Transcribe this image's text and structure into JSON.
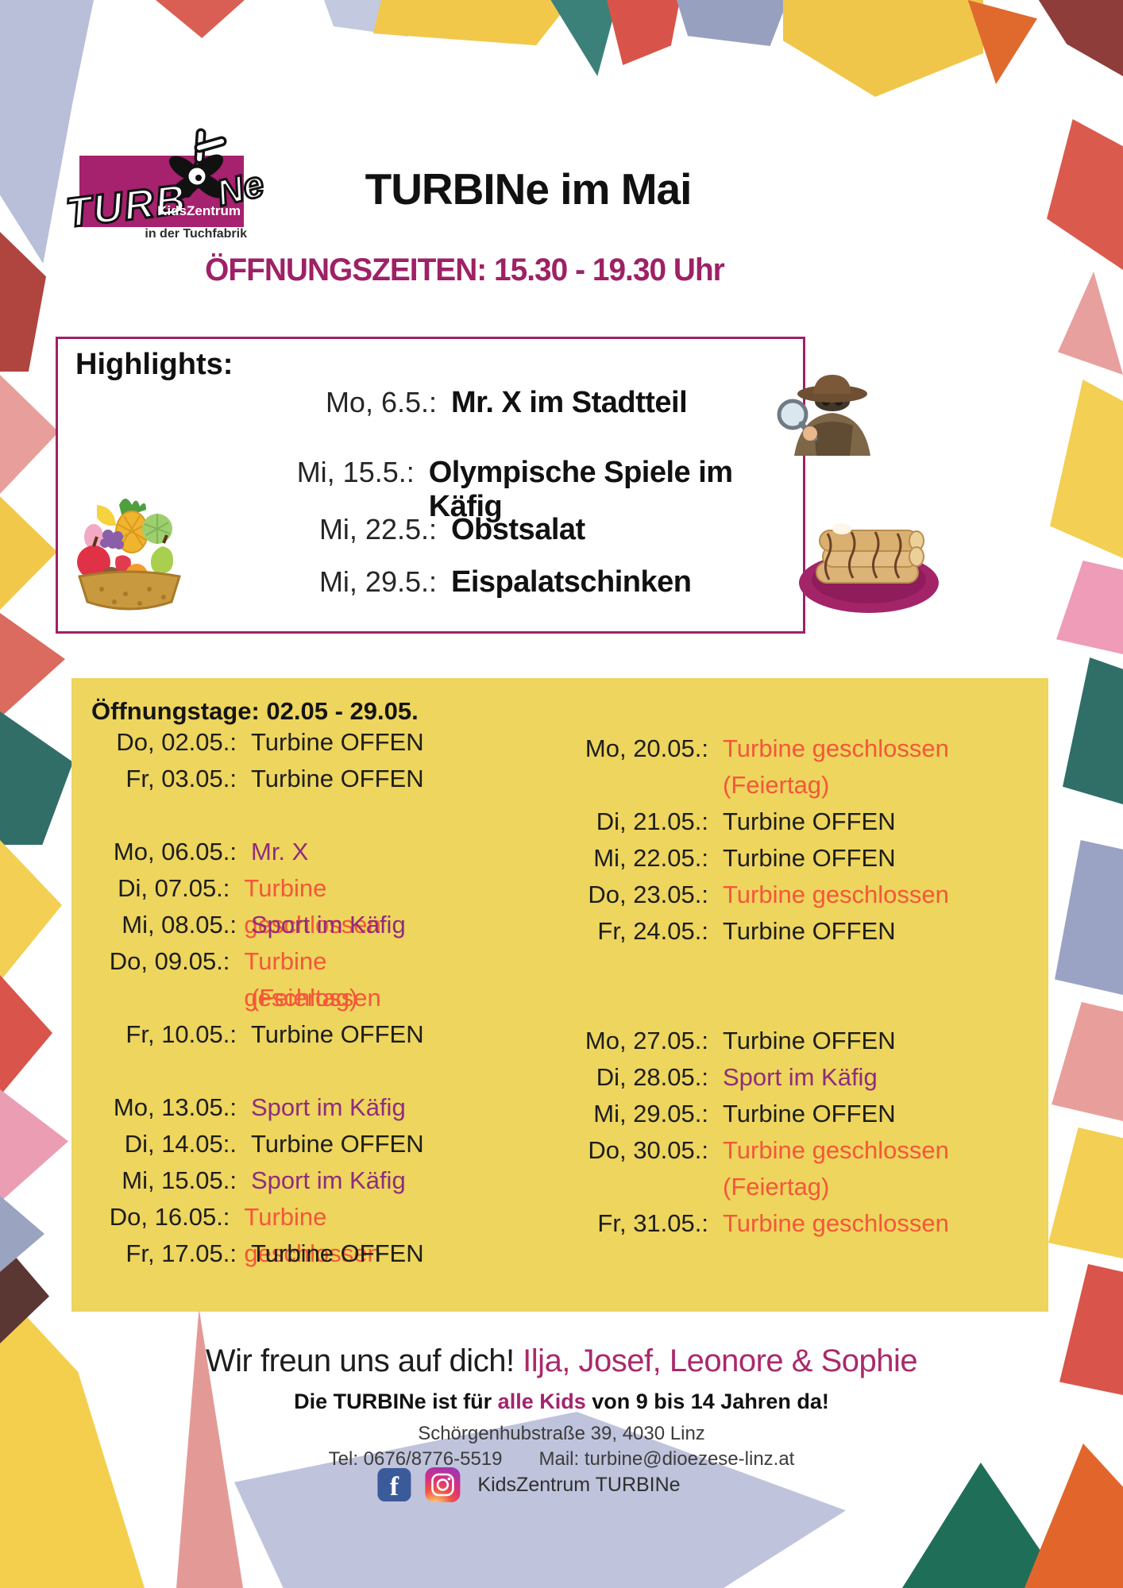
{
  "colors": {
    "accent_magenta": "#9e2166",
    "names_magenta": "#a92a6b",
    "panel_yellow": "#edd55e",
    "status_open": "#1d1d1b",
    "status_closed": "#f4573a",
    "status_event": "#8f2c7d",
    "logo_magenta": "#a6216e",
    "facebook_blue": "#3b5a9a"
  },
  "header": {
    "logo_turb": "TURB",
    "logo_ne": "Ne",
    "logo_sub1": "KidsZentrum",
    "logo_sub2": "in der Tuchfabrik",
    "title": "TURBINe im Mai",
    "opening_hours": "ÖFFNUNGSZEITEN: 15.30 - 19.30 Uhr"
  },
  "highlights": {
    "title": "Highlights:",
    "items": [
      {
        "date": "Mo, 6.5.:",
        "event": "Mr. X im Stadtteil"
      },
      {
        "date": "Mi, 15.5.:",
        "event": "Olympische Spiele im Käfig"
      },
      {
        "date": "Mi, 22.5.:",
        "event": "Obstsalat"
      },
      {
        "date": "Mi, 29.5.:",
        "event": "Eispalatschinken"
      }
    ]
  },
  "schedule": {
    "title": "Öffnungstage: 02.05 - 29.05.",
    "left": [
      {
        "date": "Do, 02.05.:",
        "status": "Turbine OFFEN",
        "type": "open"
      },
      {
        "date": "Fr, 03.05.:",
        "status": "Turbine OFFEN",
        "type": "open"
      },
      {
        "gap": true
      },
      {
        "date": "Mo, 06.05.:",
        "status": "Mr. X",
        "type": "event"
      },
      {
        "date": "Di, 07.05.:",
        "status": "Turbine geschlossen",
        "type": "closed"
      },
      {
        "date": "Mi, 08.05.:",
        "status": "Sport im Käfig",
        "type": "event"
      },
      {
        "date": "Do, 09.05.:",
        "status": "Turbine geschlossen",
        "note": "(Feiertag)",
        "type": "closed"
      },
      {
        "date": "Fr, 10.05.:",
        "status": "Turbine OFFEN",
        "type": "open"
      },
      {
        "gap": true
      },
      {
        "date": "Mo, 13.05.:",
        "status": "Sport im Käfig",
        "type": "event"
      },
      {
        "date": "Di, 14.05:.",
        "status": "Turbine OFFEN",
        "type": "open"
      },
      {
        "date": "Mi, 15.05.:",
        "status": "Sport im Käfig",
        "type": "event"
      },
      {
        "date": "Do, 16.05.:",
        "status": "Turbine geschlossen",
        "type": "closed"
      },
      {
        "date": "Fr, 17.05.:",
        "status": "Turbine OFFEN",
        "type": "open"
      }
    ],
    "right": [
      {
        "date": "Mo, 20.05.:",
        "status": "Turbine geschlossen",
        "note": "(Feiertag)",
        "type": "closed"
      },
      {
        "date": "Di, 21.05.:",
        "status": "Turbine OFFEN",
        "type": "open"
      },
      {
        "date": "Mi, 22.05.:",
        "status": "Turbine OFFEN",
        "type": "open"
      },
      {
        "date": "Do, 23.05.:",
        "status": "Turbine geschlossen",
        "type": "closed"
      },
      {
        "date": "Fr, 24.05.:",
        "status": "Turbine OFFEN",
        "type": "open"
      },
      {
        "gap": true,
        "size": "large"
      },
      {
        "date": "Mo, 27.05.:",
        "status": "Turbine OFFEN",
        "type": "open"
      },
      {
        "date": "Di, 28.05.:",
        "status": "Sport im Käfig",
        "type": "event"
      },
      {
        "date": "Mi, 29.05.:",
        "status": "Turbine OFFEN",
        "type": "open"
      },
      {
        "date": "Do, 30.05.:",
        "status": "Turbine geschlossen",
        "note": "(Feiertag)",
        "type": "closed"
      },
      {
        "date": "Fr, 31.05.:",
        "status": "Turbine geschlossen",
        "type": "closed"
      }
    ]
  },
  "footer": {
    "closing_black": "Wir freun uns auf dich!",
    "closing_names": " Ilja, Josef, Leonore & Sophie",
    "kids_pre": "Die TURBINe ist für ",
    "kids_highlight": "alle Kids",
    "kids_post": " von 9 bis 14 Jahren da!",
    "address": "Schörgenhubstraße 39, 4030 Linz",
    "phone": "Tel: 0676/8776-5519",
    "mail": "Mail: turbine@dioezese-linz.at",
    "facebook_f": "f",
    "social_label": "KidsZentrum TURBINe"
  }
}
